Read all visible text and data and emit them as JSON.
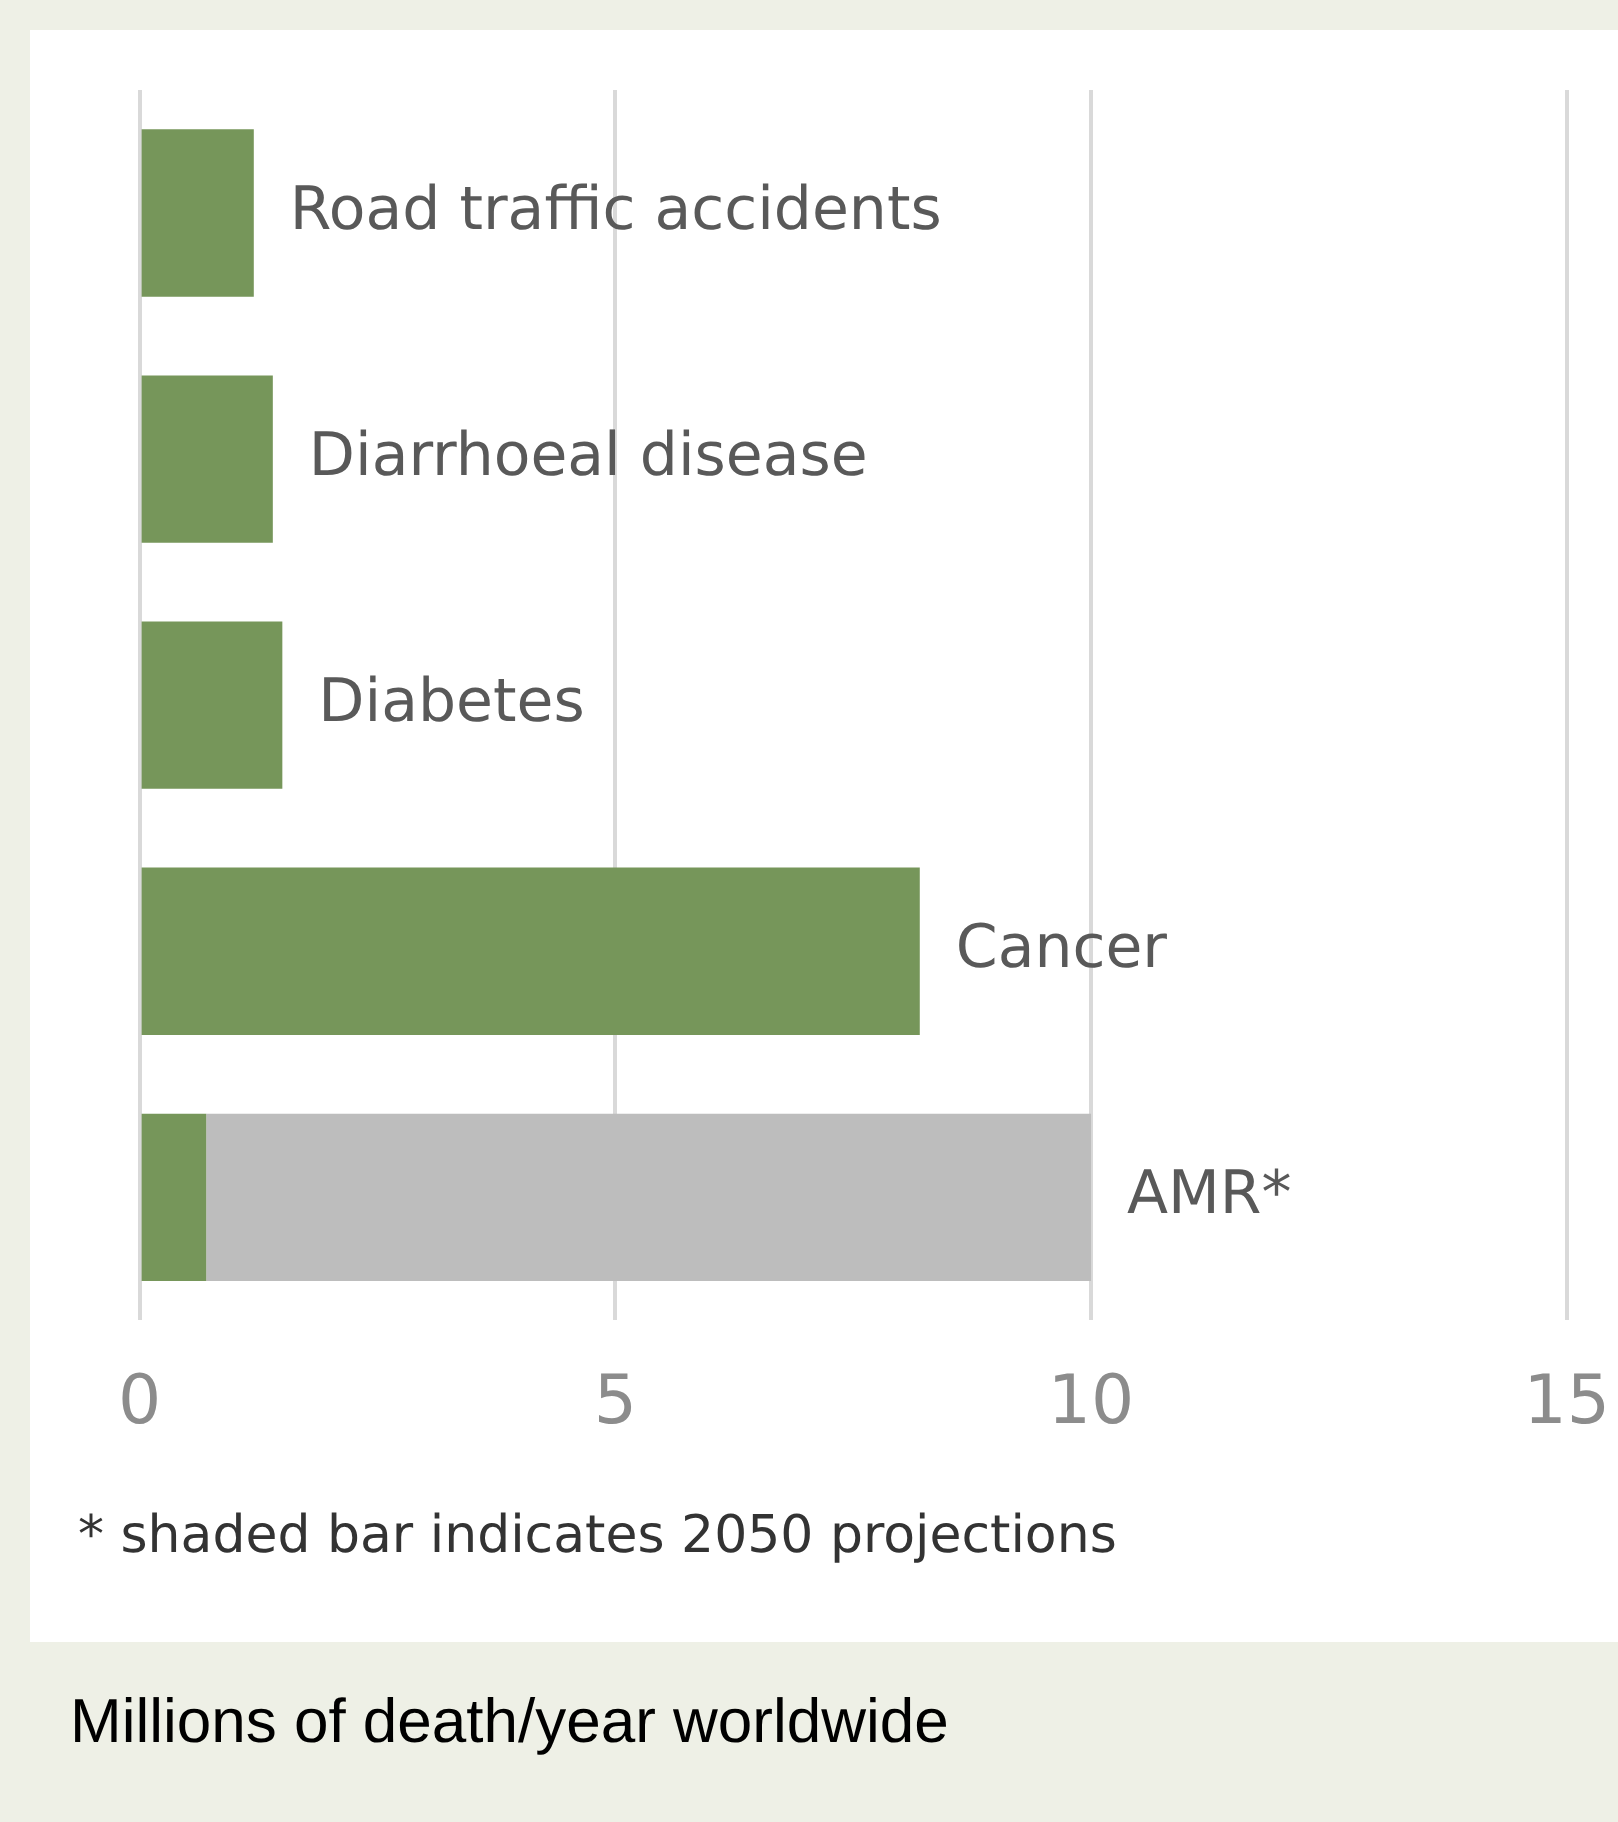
{
  "chart_data": {
    "type": "bar",
    "orientation": "horizontal",
    "stacked": true,
    "categories": [
      "Road traffic accidents",
      "Diarrhoeal disease",
      "Diabetes",
      "Cancer",
      "AMR*"
    ],
    "series": [
      {
        "color": "#76965a",
        "values": [
          1.2,
          1.4,
          1.5,
          8.2,
          0.7
        ]
      },
      {
        "color": "#bdbdbd",
        "values": [
          null,
          null,
          null,
          null,
          9.3
        ]
      }
    ],
    "xlim": [
      0,
      15
    ],
    "xticks": [
      0,
      5,
      10,
      15
    ],
    "grid": "x",
    "xlabel": "Millions of death/year worldwide",
    "annotations": [
      "* shaded bar indicates 2050 projections"
    ]
  }
}
